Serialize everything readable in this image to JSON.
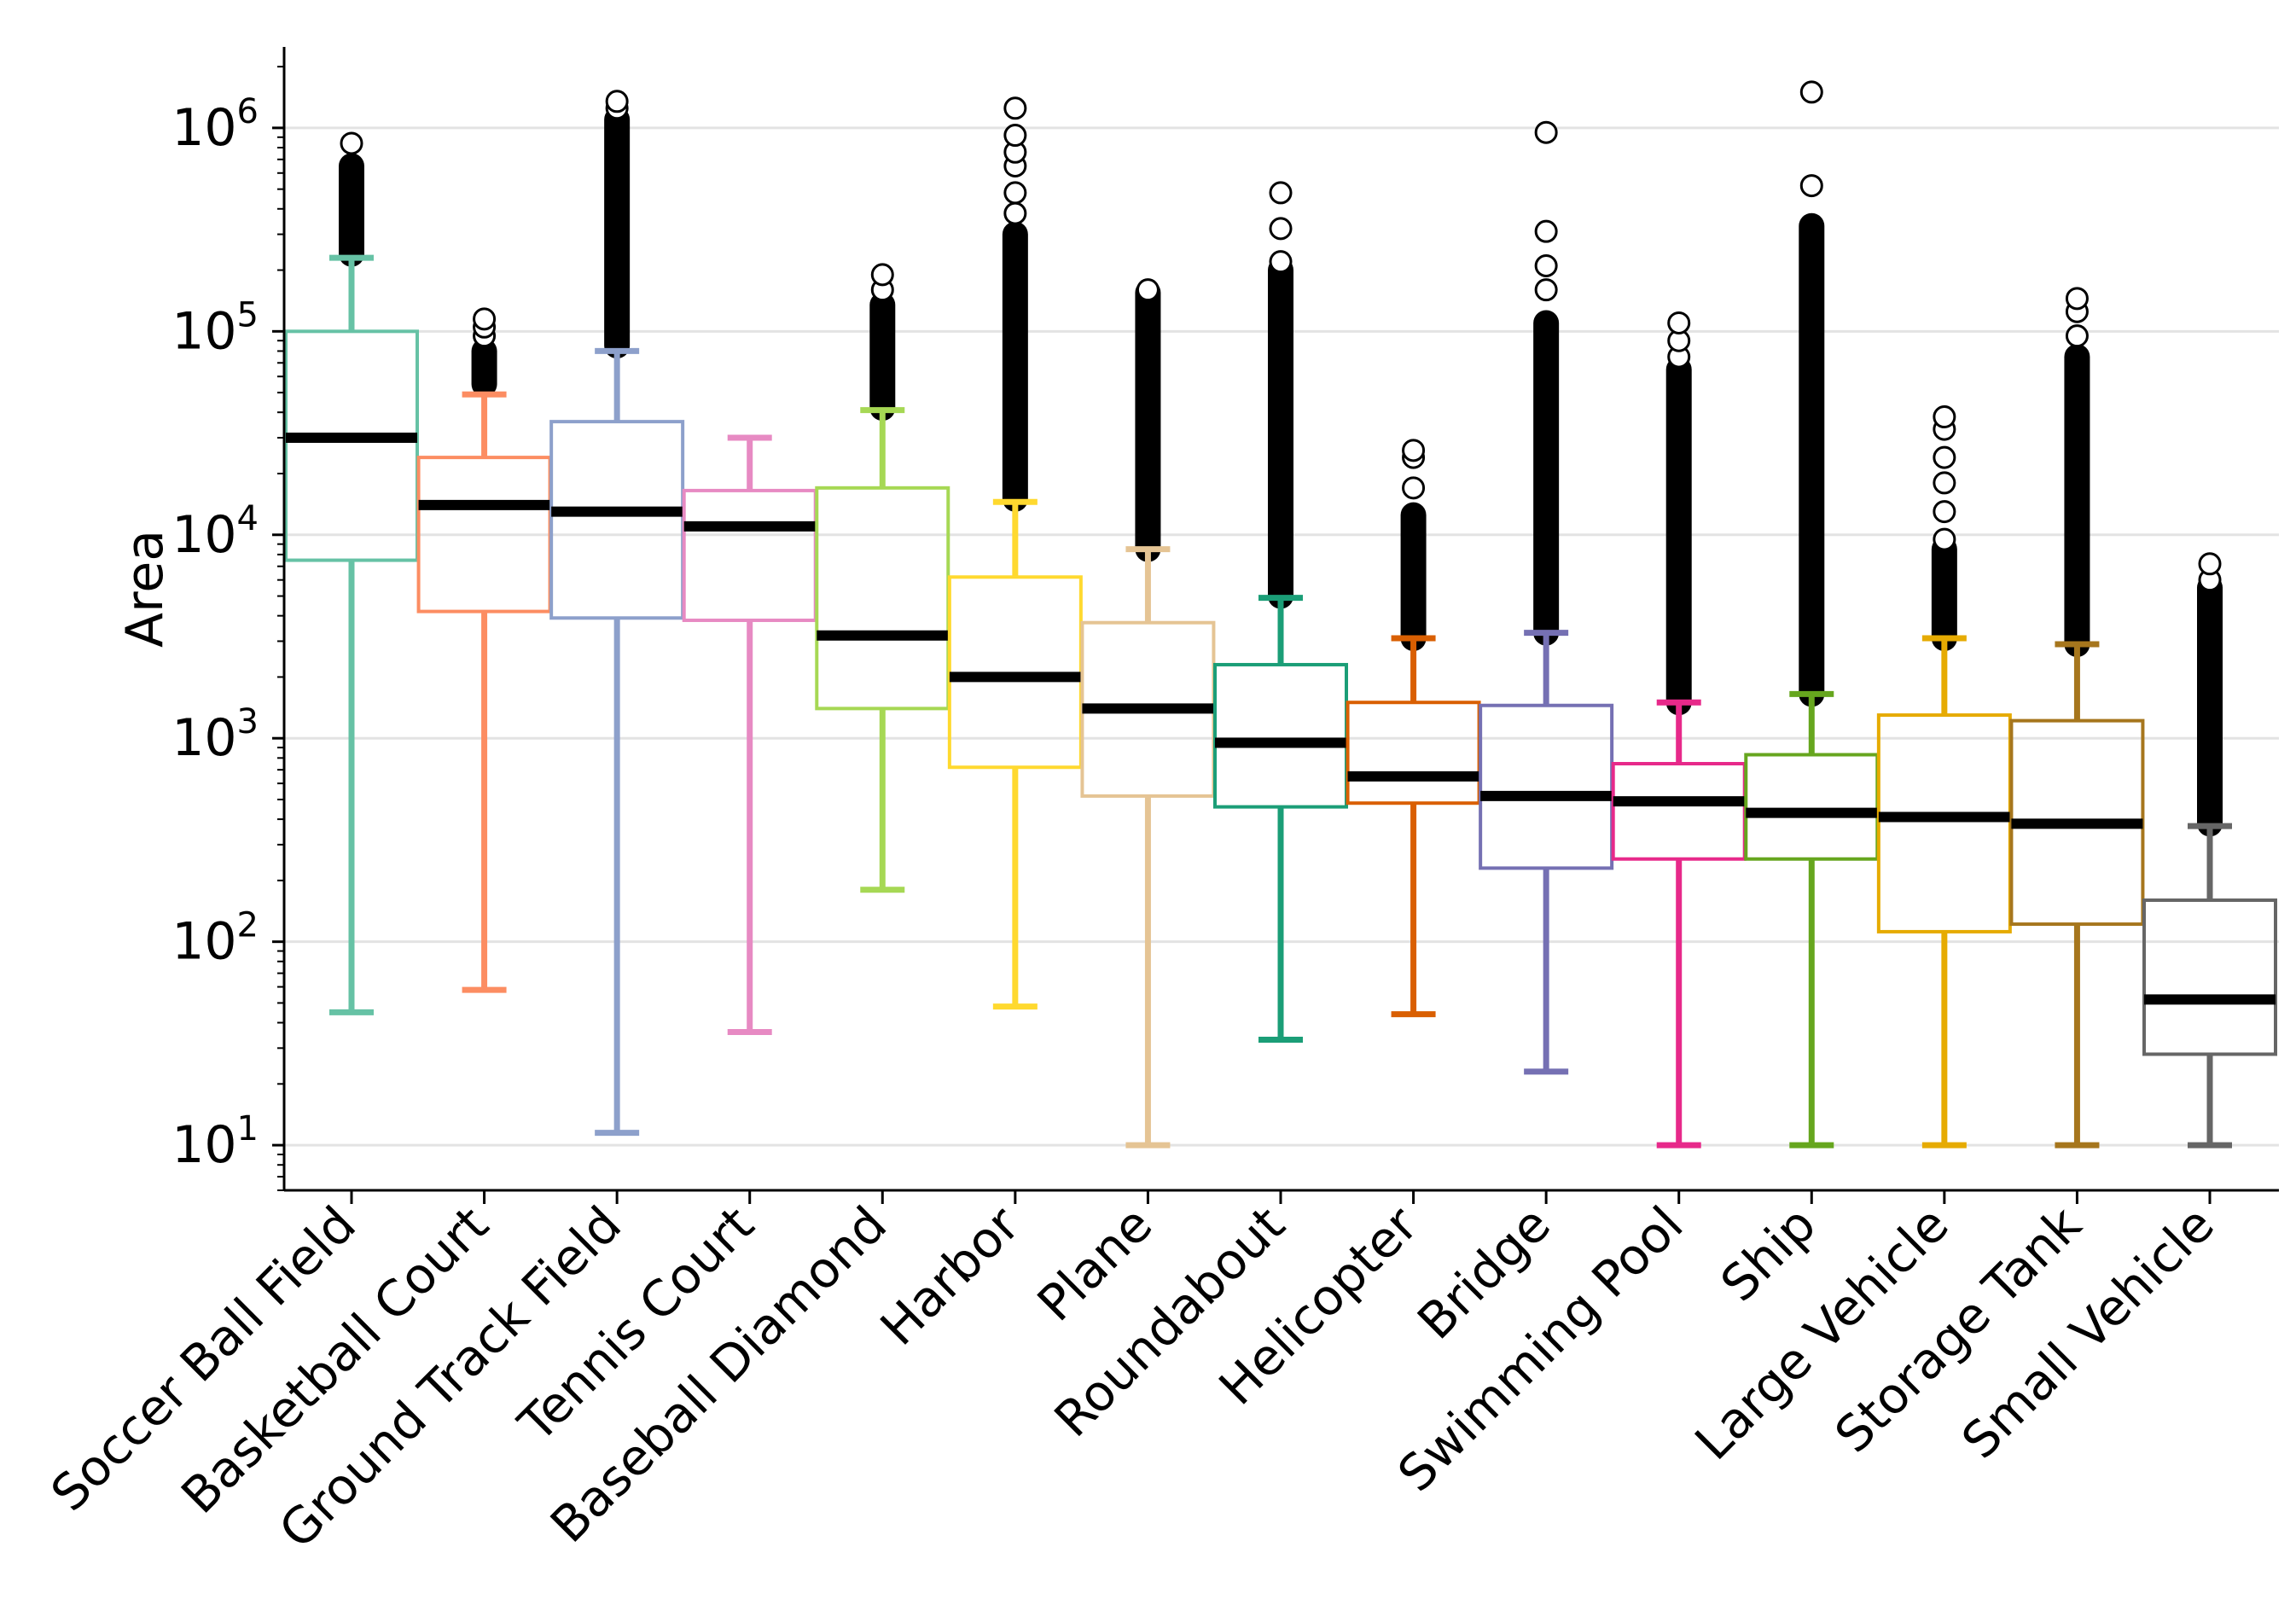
{
  "chart_data": {
    "type": "box",
    "title": "",
    "xlabel": "",
    "ylabel": "Area",
    "yscale": "log",
    "ylim": [
      6,
      2500000
    ],
    "ytick_base": "10",
    "yticks": [
      {
        "value": 10,
        "exp": "1"
      },
      {
        "value": 100,
        "exp": "2"
      },
      {
        "value": 1000,
        "exp": "3"
      },
      {
        "value": 10000,
        "exp": "4"
      },
      {
        "value": 100000,
        "exp": "5"
      },
      {
        "value": 1000000,
        "exp": "6"
      }
    ],
    "grid": true,
    "median_color": "#000000",
    "outlier_style": "hollow circle",
    "boxes": [
      {
        "category": "Soccer Ball Field",
        "color": "#66c2a5",
        "whisker_low": 45,
        "q1": 7500,
        "median": 30000,
        "q3": 100000,
        "whisker_high": 230000,
        "outliers_dense": [
          240000,
          650000
        ],
        "outliers": [
          840000
        ]
      },
      {
        "category": "Basketball Court",
        "color": "#fc8d62",
        "whisker_low": 58,
        "q1": 4200,
        "median": 14000,
        "q3": 24000,
        "whisker_high": 49000,
        "outliers_dense": [
          55000,
          80000
        ],
        "outliers": [
          95000,
          105000,
          115000
        ]
      },
      {
        "category": "Ground Track Field",
        "color": "#8da0cb",
        "whisker_low": 11.5,
        "q1": 3900,
        "median": 13000,
        "q3": 36000,
        "whisker_high": 80000,
        "outliers_dense": [
          85000,
          1100000
        ],
        "outliers": [
          1250000,
          1350000
        ]
      },
      {
        "category": "Tennis Court",
        "color": "#e78ac3",
        "whisker_low": 36,
        "q1": 3800,
        "median": 11000,
        "q3": 16500,
        "whisker_high": 30000,
        "outliers_dense": [],
        "outliers": []
      },
      {
        "category": "Baseball Diamond",
        "color": "#a6d854",
        "whisker_low": 180,
        "q1": 1400,
        "median": 3200,
        "q3": 17000,
        "whisker_high": 41000,
        "outliers_dense": [
          42000,
          135000
        ],
        "outliers": [
          160000,
          190000
        ]
      },
      {
        "category": "Harbor",
        "color": "#ffd92f",
        "whisker_low": 48,
        "q1": 720,
        "median": 2000,
        "q3": 6200,
        "whisker_high": 14500,
        "outliers_dense": [
          15000,
          300000
        ],
        "outliers": [
          380000,
          480000,
          650000,
          760000,
          920000,
          1250000
        ]
      },
      {
        "category": "Plane",
        "color": "#e5c494",
        "whisker_low": 10,
        "q1": 520,
        "median": 1400,
        "q3": 3700,
        "whisker_high": 8500,
        "outliers_dense": [
          8500,
          155000
        ],
        "outliers": [
          160000
        ]
      },
      {
        "category": "Roundabout",
        "color": "#1b9e77",
        "whisker_low": 33,
        "q1": 460,
        "median": 950,
        "q3": 2300,
        "whisker_high": 4900,
        "outliers_dense": [
          5000,
          200000
        ],
        "outliers": [
          220000,
          320000,
          480000
        ]
      },
      {
        "category": "Helicopter",
        "color": "#d95f02",
        "whisker_low": 44,
        "q1": 480,
        "median": 650,
        "q3": 1500,
        "whisker_high": 3100,
        "outliers_dense": [
          3100,
          12500
        ],
        "outliers": [
          17000,
          24000,
          26000
        ]
      },
      {
        "category": "Bridge",
        "color": "#7570b3",
        "whisker_low": 23,
        "q1": 230,
        "median": 520,
        "q3": 1450,
        "whisker_high": 3300,
        "outliers_dense": [
          3300,
          110000
        ],
        "outliers": [
          160000,
          210000,
          310000,
          950000
        ]
      },
      {
        "category": "Swimming Pool",
        "color": "#e7298a",
        "whisker_low": 10,
        "q1": 255,
        "median": 490,
        "q3": 750,
        "whisker_high": 1500,
        "outliers_dense": [
          1500,
          65000
        ],
        "outliers": [
          75000,
          90000,
          110000
        ]
      },
      {
        "category": "Ship",
        "color": "#66a61e",
        "whisker_low": 10,
        "q1": 255,
        "median": 430,
        "q3": 830,
        "whisker_high": 1650,
        "outliers_dense": [
          1650,
          330000
        ],
        "outliers": [
          520000,
          1500000
        ]
      },
      {
        "category": "Large Vehicle",
        "color": "#e6ab02",
        "whisker_low": 10,
        "q1": 112,
        "median": 410,
        "q3": 1300,
        "whisker_high": 3100,
        "outliers_dense": [
          3100,
          8500
        ],
        "outliers": [
          9500,
          13000,
          18000,
          24000,
          33000,
          38000
        ]
      },
      {
        "category": "Storage Tank",
        "color": "#a6761d",
        "whisker_low": 10,
        "q1": 122,
        "median": 380,
        "q3": 1220,
        "whisker_high": 2900,
        "outliers_dense": [
          2900,
          75000
        ],
        "outliers": [
          95000,
          125000,
          145000
        ]
      },
      {
        "category": "Small Vehicle",
        "color": "#666666",
        "whisker_low": 10,
        "q1": 28,
        "median": 52,
        "q3": 160,
        "whisker_high": 370,
        "outliers_dense": [
          380,
          5500
        ],
        "outliers": [
          6000,
          7200
        ]
      }
    ]
  }
}
